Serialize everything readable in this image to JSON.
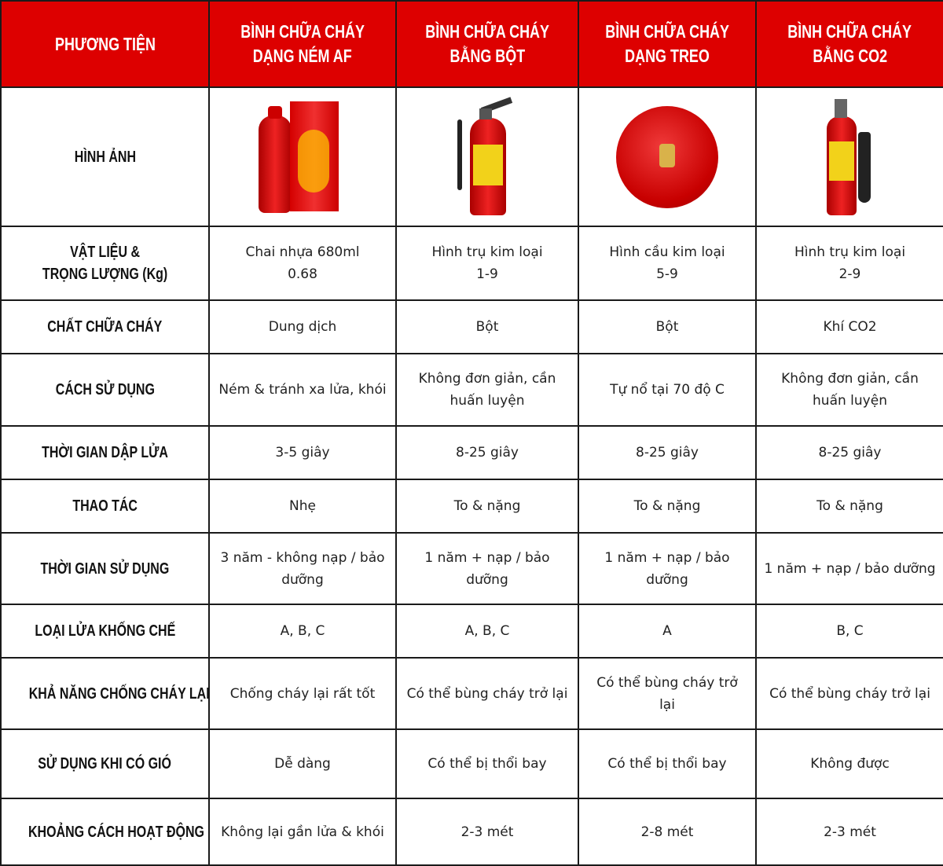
{
  "header": {
    "label_col": "PHƯƠNG TIỆN",
    "columns": [
      {
        "line1": "BÌNH CHỮA CHÁY",
        "line2": "DẠNG NÉM AF",
        "image_icon": "af-throwable-extinguisher-icon"
      },
      {
        "line1": "BÌNH CHỮA CHÁY",
        "line2": "BẰNG BỘT",
        "image_icon": "powder-extinguisher-icon"
      },
      {
        "line1": "BÌNH CHỮA CHÁY",
        "line2": "DẠNG TREO",
        "image_icon": "ceiling-ball-extinguisher-icon"
      },
      {
        "line1": "BÌNH CHỮA CHÁY",
        "line2": "BẰNG CO2",
        "image_icon": "co2-extinguisher-icon"
      }
    ]
  },
  "image_row_label": "HÌNH ẢNH",
  "rows": [
    {
      "label": [
        "VẬT LIỆU &",
        "TRỌNG LƯỢNG (Kg)"
      ],
      "cells": [
        [
          "Chai nhựa 680ml",
          "0.68"
        ],
        [
          "Hình trụ kim loại",
          "1-9"
        ],
        [
          "Hình cầu kim loại",
          "5-9"
        ],
        [
          "Hình trụ kim loại",
          "2-9"
        ]
      ]
    },
    {
      "label": [
        "CHẤT CHỮA CHÁY"
      ],
      "cells": [
        [
          "Dung dịch"
        ],
        [
          "Bột"
        ],
        [
          "Bột"
        ],
        [
          "Khí CO2"
        ]
      ]
    },
    {
      "label": [
        "CÁCH SỬ DỤNG"
      ],
      "cells": [
        [
          "Ném & tránh xa lửa, khói"
        ],
        [
          "Không đơn giản, cần",
          "huấn luyện"
        ],
        [
          "Tự nổ tại 70 độ C"
        ],
        [
          "Không đơn giản, cần",
          "huấn luyện"
        ]
      ]
    },
    {
      "label": [
        "THỜI GIAN DẬP LỬA"
      ],
      "cells": [
        [
          "3-5 giây"
        ],
        [
          "8-25 giây"
        ],
        [
          "8-25 giây"
        ],
        [
          "8-25 giây"
        ]
      ]
    },
    {
      "label": [
        "THAO TÁC"
      ],
      "cells": [
        [
          "Nhẹ"
        ],
        [
          "To & nặng"
        ],
        [
          "To & nặng"
        ],
        [
          "To & nặng"
        ]
      ]
    },
    {
      "label": [
        "THỜI GIAN SỬ DỤNG"
      ],
      "cells": [
        [
          "3 năm - không nạp / bảo",
          "dưỡng"
        ],
        [
          "1 năm + nạp / bảo",
          "dưỡng"
        ],
        [
          "1 năm + nạp / bảo",
          "dưỡng"
        ],
        [
          "1 năm + nạp / bảo dưỡng"
        ]
      ]
    },
    {
      "label": [
        "LOẠI LỬA KHỐNG CHẾ"
      ],
      "cells": [
        [
          "A, B, C"
        ],
        [
          "A, B, C"
        ],
        [
          "A"
        ],
        [
          "B, C"
        ]
      ]
    },
    {
      "label": [
        "KHẢ NĂNG CHỐNG CHÁY LẠI"
      ],
      "cells": [
        [
          "Chống cháy lại rất tốt"
        ],
        [
          "Có thể bùng cháy trở lại"
        ],
        [
          "Có thể bùng cháy trở",
          "lại"
        ],
        [
          "Có thể bùng cháy trở lại"
        ]
      ]
    },
    {
      "label": [
        "SỬ DỤNG KHI CÓ GIÓ"
      ],
      "cells": [
        [
          "Dễ dàng"
        ],
        [
          "Có thể bị thổi bay"
        ],
        [
          "Có thể bị thổi bay"
        ],
        [
          "Không được"
        ]
      ]
    },
    {
      "label": [
        "KHOẢNG CÁCH HOẠT ĐỘNG"
      ],
      "cells": [
        [
          "Không lại gần lửa & khói"
        ],
        [
          "2-3 mét"
        ],
        [
          "2-8 mét"
        ],
        [
          "2-3 mét"
        ]
      ]
    }
  ],
  "colors": {
    "header_bg": "#dd0000",
    "header_text": "#ffffff",
    "border": "#1a1a1a",
    "product_red": "#e0141c"
  }
}
